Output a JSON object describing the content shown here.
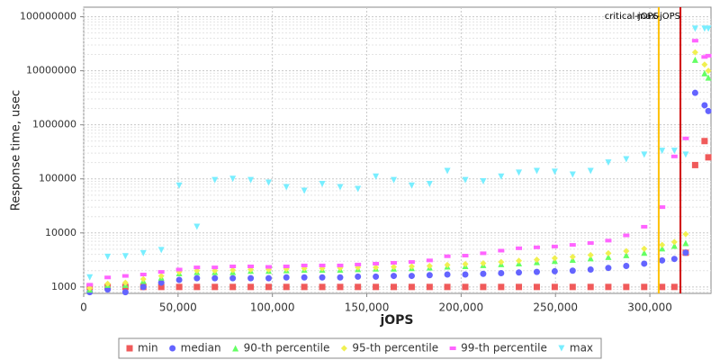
{
  "chart_data": {
    "type": "scatter",
    "x_label": "jOPS",
    "y_label": "Response time, usec",
    "xlim": [
      0,
      332400
    ],
    "ylim": [
      760,
      150000000
    ],
    "ylog": true,
    "grid": true,
    "xticks": [
      {
        "value": 0,
        "label": "0"
      },
      {
        "value": 50000,
        "label": "50,000"
      },
      {
        "value": 100000,
        "label": "100,000"
      },
      {
        "value": 150000,
        "label": "150,000"
      },
      {
        "value": 200000,
        "label": "200,000"
      },
      {
        "value": 250000,
        "label": "250,000"
      },
      {
        "value": 300000,
        "label": "300,000"
      }
    ],
    "yticks": [
      1000,
      10000,
      100000,
      1000000,
      10000000,
      100000000
    ],
    "annotations": [
      {
        "label": "critical-jOPS",
        "x": 304700,
        "color": "#ffc000"
      },
      {
        "label": "max-jOPS",
        "x": 316200,
        "color": "#d00000"
      }
    ],
    "x": [
      3200,
      12700,
      22100,
      31600,
      41100,
      50600,
      60000,
      69500,
      79000,
      88500,
      98000,
      107400,
      116900,
      126400,
      135900,
      145300,
      154800,
      164300,
      173800,
      183300,
      192700,
      202200,
      211700,
      221200,
      230600,
      240100,
      249600,
      259100,
      268600,
      278000,
      287500,
      297000,
      306500,
      313000,
      319000,
      324000,
      329000,
      331000
    ],
    "series": [
      {
        "name": "min",
        "color": "#f05a5a",
        "marker": "square",
        "values": [
          1000,
          1000,
          1000,
          1000,
          1000,
          1000,
          1000,
          1000,
          1000,
          1000,
          1000,
          1000,
          1000,
          1000,
          1000,
          1000,
          1000,
          1000,
          1000,
          1000,
          1000,
          1000,
          1000,
          1000,
          1000,
          1000,
          1000,
          1000,
          1000,
          1000,
          1000,
          1000,
          1000,
          1000,
          4300,
          180000,
          500000,
          250000
        ]
      },
      {
        "name": "median",
        "color": "#6464ff",
        "marker": "circle",
        "values": [
          800,
          900,
          800,
          1000,
          1200,
          1350,
          1450,
          1450,
          1450,
          1450,
          1450,
          1500,
          1500,
          1500,
          1500,
          1550,
          1550,
          1600,
          1600,
          1650,
          1700,
          1700,
          1750,
          1800,
          1850,
          1900,
          1950,
          2000,
          2100,
          2250,
          2450,
          2700,
          3100,
          3300,
          4300,
          3900000,
          2300000,
          1800000
        ]
      },
      {
        "name": "90-th percentile",
        "color": "#64ff64",
        "marker": "triangle-up",
        "values": [
          900,
          1100,
          1100,
          1300,
          1500,
          1800,
          1900,
          1900,
          1900,
          2000,
          2000,
          2050,
          2100,
          2100,
          2100,
          2150,
          2200,
          2200,
          2250,
          2300,
          2400,
          2450,
          2550,
          2650,
          2750,
          2900,
          3050,
          3200,
          3400,
          3600,
          3900,
          4300,
          5200,
          5800,
          6500,
          16000000,
          9000000,
          7500000
        ]
      },
      {
        "name": "95-th percentile",
        "color": "#f0f050",
        "marker": "diamond",
        "values": [
          950,
          1150,
          1200,
          1400,
          1600,
          1900,
          2000,
          2000,
          2050,
          2100,
          2100,
          2150,
          2200,
          2200,
          2250,
          2300,
          2300,
          2350,
          2400,
          2450,
          2550,
          2650,
          2750,
          2900,
          3050,
          3200,
          3400,
          3600,
          3900,
          4200,
          4600,
          5100,
          6000,
          6800,
          9500,
          22000000,
          13000000,
          10000000
        ]
      },
      {
        "name": "99-th percentile",
        "color": "#ff64ff",
        "marker": "rect",
        "values": [
          1100,
          1500,
          1600,
          1700,
          1900,
          2100,
          2300,
          2300,
          2400,
          2400,
          2350,
          2400,
          2500,
          2500,
          2500,
          2600,
          2700,
          2800,
          2900,
          3100,
          3700,
          3800,
          4200,
          4700,
          5200,
          5400,
          5600,
          6000,
          6500,
          7200,
          9000,
          13000,
          30000,
          260000,
          560000,
          36000000,
          18000000,
          19000000
        ]
      },
      {
        "name": "max",
        "color": "#78eeff",
        "marker": "triangle-down",
        "values": [
          1500,
          3600,
          3700,
          4200,
          4800,
          75000,
          13000,
          95000,
          100000,
          95000,
          85000,
          70000,
          60000,
          80000,
          70000,
          65000,
          110000,
          95000,
          75000,
          80000,
          140000,
          95000,
          90000,
          110000,
          130000,
          140000,
          135000,
          120000,
          140000,
          200000,
          230000,
          280000,
          330000,
          330000,
          280000,
          60000000,
          60000000,
          60000000
        ]
      }
    ]
  }
}
